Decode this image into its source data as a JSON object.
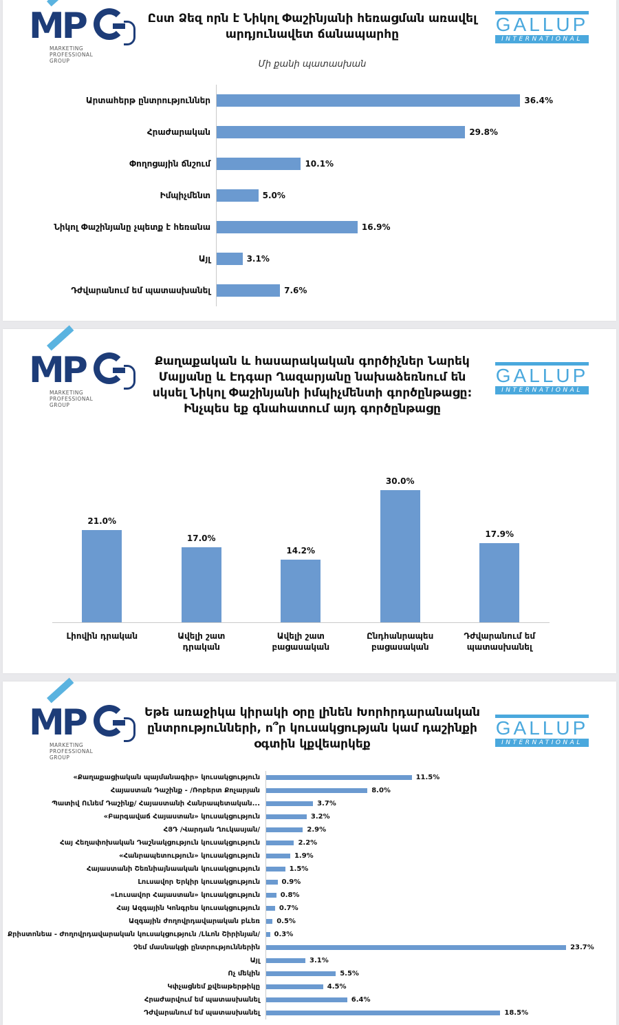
{
  "brand": {
    "mpg_text": "MPG",
    "mpg_tagline": [
      "MARKETING",
      "PROFESSIONAL",
      "GROUP"
    ],
    "gallup_text": "GALLUP",
    "gallup_sub": "INTERNATIONAL",
    "colors": {
      "mpg_blue": "#1d3c78",
      "mpg_accent": "#5ab3e0",
      "gallup_blue": "#4aa8dd",
      "bar": "#6b9ad0"
    }
  },
  "panel1": {
    "title": "Ըստ Ձեզ որն է Նիկոլ Փաշինյանի հեռացման առավել արդյունավետ ճանապարհը",
    "subtitle": "Մի քանի պատասխան"
  },
  "panel2": {
    "title": "Քաղաքական և հասարակական գործիչներ Նարեկ Մալյանը և Էդգար Ղազարյանը նախաձեռնում են սկսել Նիկոլ Փաշինյանի իմպիչմենտի գործընթացը: Ինչպես եք գնահատում այդ գործընթացը"
  },
  "panel3": {
    "title": "Եթե առաջիկա կիրակի օրը լինեն Խորհրդարանական ընտրությունների, ո՞ր կուսակցության կամ դաշինքի օգտին կքվեարկեք"
  },
  "chart_data": [
    {
      "type": "bar",
      "orientation": "horizontal",
      "categories": [
        "Արտահերթ ընտրություններ",
        "Հրաժարական",
        "Փողոցային ճնշում",
        "Իմպիչմենտ",
        "Նիկոլ Փաշինյանը չպետք է հեռանա",
        "Այլ",
        "Դժվարանում եմ պատասխանել"
      ],
      "values": [
        36.4,
        29.8,
        10.1,
        5.0,
        16.9,
        3.1,
        7.6
      ],
      "value_labels": [
        "36.4%",
        "29.8%",
        "10.1%",
        "5.0%",
        "16.9%",
        "3.1%",
        "7.6%"
      ],
      "unit": "%",
      "xlim": [
        0,
        40
      ],
      "grid": false
    },
    {
      "type": "bar",
      "orientation": "vertical",
      "categories": [
        "Լիովին դրական",
        "Ավելի շատ դրական",
        "Ավելի շատ բացասական",
        "Ընդհանրապես բացասական",
        "Դժվարանում եմ պատասխանել"
      ],
      "values": [
        21.0,
        17.0,
        14.2,
        30.0,
        17.9
      ],
      "value_labels": [
        "21.0%",
        "17.0%",
        "14.2%",
        "30.0%",
        "17.9%"
      ],
      "unit": "%",
      "ylim": [
        0,
        35
      ],
      "grid": false
    },
    {
      "type": "bar",
      "orientation": "horizontal",
      "categories": [
        "«Քաղաքացիական պայմանագիր» կուսակցություն",
        "Հայաստան Դաշինք - /Ռոբերտ Քոչարյան",
        "Պատիվ Ունեմ Դաշինք/ Հայաստանի Հանրապետական...",
        "«Բարգավաճ Հայաստան» կուսակցություն",
        "ՀՅԴ /Վարդան Ղուկասյան/",
        "Հայ Հեղափոխական Դաշնակցություն կուսակցություն",
        "«Հանրապետություն» կուսակցություն",
        "Հայաստանի Շեռնիայնաական կուսակցություն",
        "Լուսավոր Երկիր կուսակցություն",
        "«Լուսավոր Հայաստան» կուսակցություն",
        "Հայ Ազգային Կոնգրես կուսակցություն",
        "Ազգային ժողովրդավարական բևեռ",
        "Քրիստոնեա - Ժողովրդավարական կուսակցություն /Լևոն Շիրինյան/",
        "Չեմ մասնակցի ընտրություններին",
        "Այլ",
        "Ոչ մեկին",
        "Կփչացնեմ քվեաթերթիկը",
        "Հրաժարվում եմ պատասխանել",
        "Դժվարանում եմ պատասխանել"
      ],
      "values": [
        11.5,
        8.0,
        3.7,
        3.2,
        2.9,
        2.2,
        1.9,
        1.5,
        0.9,
        0.8,
        0.7,
        0.5,
        0.3,
        23.7,
        3.1,
        5.5,
        4.5,
        6.4,
        18.5
      ],
      "value_labels": [
        "11.5%",
        "8.0%",
        "3.7%",
        "3.2%",
        "2.9%",
        "2.2%",
        "1.9%",
        "1.5%",
        "0.9%",
        "0.8%",
        "0.7%",
        "0.5%",
        "0.3%",
        "23.7%",
        "3.1%",
        "5.5%",
        "4.5%",
        "6.4%",
        "18.5%"
      ],
      "unit": "%",
      "xlim": [
        0,
        25
      ],
      "grid": false
    }
  ]
}
